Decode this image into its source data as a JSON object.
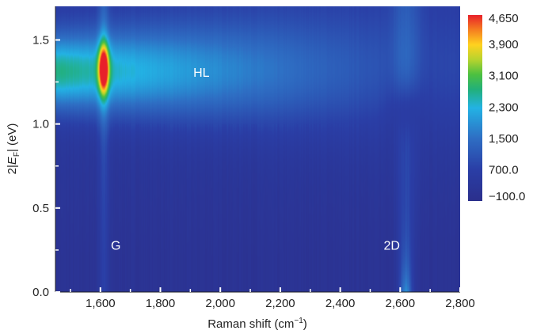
{
  "chart_data": {
    "type": "heatmap",
    "xlabel": "Raman shift (cm",
    "xlabel_sup": "−1",
    "xlabel_end": ")",
    "ylabel_prefix": "2|",
    "ylabel_var": "E",
    "ylabel_sub": "F",
    "ylabel_suffix": "| (eV)",
    "xlim": [
      1450,
      2800
    ],
    "ylim": [
      0.0,
      1.7
    ],
    "x_ticks": [
      1600,
      1800,
      2000,
      2200,
      2400,
      2600,
      2800
    ],
    "x_tick_labels": [
      "1,600",
      "1,800",
      "2,000",
      "2,200",
      "2,400",
      "2,600",
      "2,800"
    ],
    "y_ticks": [
      0.0,
      0.5,
      1.0,
      1.5
    ],
    "y_tick_labels": [
      "0.0",
      "0.5",
      "1.0",
      "1.5"
    ],
    "colorbar": {
      "range": [
        -100,
        4650
      ],
      "tick_values": [
        4650,
        3900,
        3100,
        2300,
        1500,
        700,
        -100
      ],
      "tick_labels": [
        "4,650",
        "3,900",
        "3,100",
        "2,300",
        "1,500",
        "700.0",
        "−100.0"
      ]
    },
    "features": {
      "G": {
        "center_x": 1610,
        "width": 12,
        "peak_y": 1.33,
        "peak_value": 4650
      },
      "HL": {
        "center_y": 1.31,
        "spread_y": 0.16,
        "value_at_G": 2300,
        "decay_to_x": 2700
      },
      "2D": {
        "center_x": 2620,
        "width": 22,
        "peak_y": 0.05
      }
    },
    "annotations": [
      {
        "text": "HL",
        "x": 1910,
        "y": 1.31
      },
      {
        "text": "G",
        "x": 1635,
        "y": 0.28
      },
      {
        "text": "2D",
        "x": 2545,
        "y": 0.28
      }
    ]
  }
}
